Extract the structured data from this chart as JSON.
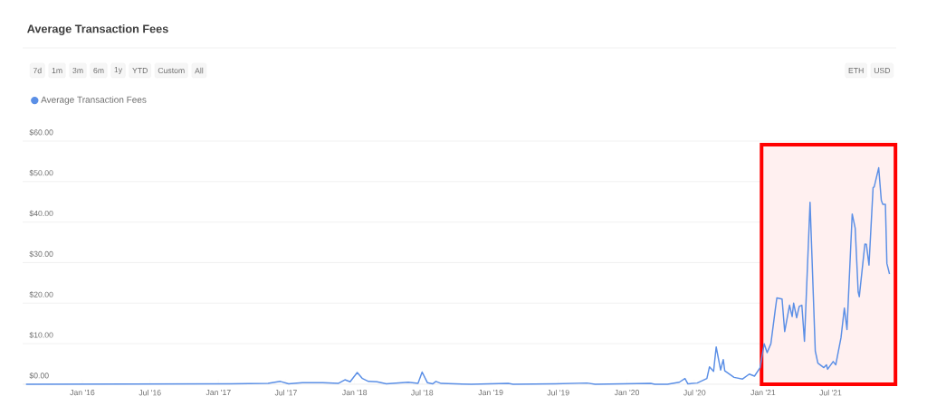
{
  "chart_data": {
    "type": "line",
    "title": "Average Transaction Fees",
    "annotations": [
      "7d",
      "1m",
      "3m",
      "6m",
      "1y",
      "YTD",
      "Custom",
      "All",
      "ETH",
      "USD"
    ],
    "series": [
      {
        "name": "Average Transaction Fees",
        "color": "#5b8fe6",
        "x": [
          "2015-08-03",
          "2017-02-03",
          "2017-05-14",
          "2017-06-16",
          "2017-07-08",
          "2017-08-14",
          "2017-10-08",
          "2017-11-18",
          "2017-12-06",
          "2017-12-20",
          "2018-01-08",
          "2018-01-22",
          "2018-02-07",
          "2018-03-02",
          "2018-03-27",
          "2018-05-25",
          "2018-06-20",
          "2018-07-01",
          "2018-07-15",
          "2018-07-29",
          "2018-08-07",
          "2018-08-21",
          "2018-11-10",
          "2019-02-17",
          "2019-03-02",
          "2019-06-23",
          "2019-09-16",
          "2019-10-08",
          "2020-03-05",
          "2020-03-16",
          "2020-04-19",
          "2020-05-21",
          "2020-06-05",
          "2020-06-13",
          "2020-07-08",
          "2020-08-03",
          "2020-08-10",
          "2020-08-21",
          "2020-08-28",
          "2020-09-09",
          "2020-09-16",
          "2020-09-20",
          "2020-10-15",
          "2020-11-07",
          "2020-11-25",
          "2020-12-09",
          "2020-12-24",
          "2021-01-04",
          "2021-01-12",
          "2021-01-22",
          "2021-02-03",
          "2021-02-07",
          "2021-02-21",
          "2021-02-28",
          "2021-03-13",
          "2021-03-20",
          "2021-03-24",
          "2021-04-01",
          "2021-04-08",
          "2021-04-15",
          "2021-04-22",
          "2021-05-07",
          "2021-05-21",
          "2021-05-28",
          "2021-06-13",
          "2021-06-20",
          "2021-06-23",
          "2021-07-08",
          "2021-07-15",
          "2021-07-29",
          "2021-08-07",
          "2021-08-14",
          "2021-08-28",
          "2021-09-05",
          "2021-09-13",
          "2021-09-16",
          "2021-10-01",
          "2021-10-05",
          "2021-10-12",
          "2021-10-23",
          "2021-10-26",
          "2021-11-07",
          "2021-11-14",
          "2021-11-18",
          "2021-11-25",
          "2021-11-29",
          "2021-12-06"
        ],
        "values": [
          0,
          0.1,
          0.2,
          0.7,
          0.1,
          0.4,
          0.4,
          0.2,
          1.1,
          0.6,
          2.9,
          1.4,
          0.7,
          0.6,
          0.1,
          0.5,
          0.2,
          3.0,
          0.4,
          0.1,
          0.7,
          0.2,
          0,
          0.2,
          0,
          0.1,
          0.3,
          0,
          0.2,
          0,
          0,
          0.5,
          1.4,
          0.1,
          0.3,
          1.4,
          4.3,
          3.2,
          9.2,
          3.5,
          6.1,
          3.3,
          1.7,
          1.3,
          2.5,
          2.0,
          4.1,
          10.0,
          7.8,
          10.0,
          18.6,
          21.3,
          21.0,
          13.0,
          19.5,
          16.7,
          20.0,
          16.4,
          19.2,
          19.5,
          10.6,
          44.9,
          8.2,
          5.2,
          4.1,
          4.8,
          3.7,
          5.6,
          4.8,
          11.5,
          18.8,
          13.5,
          42.0,
          38.5,
          22.8,
          21.6,
          34.6,
          34.5,
          29.4,
          48.5,
          48.7,
          53.4,
          45.4,
          44.4,
          44.4,
          29.8,
          27.2
        ]
      }
    ],
    "xlim": [
      "2015-07-25",
      "2021-12-24"
    ],
    "xticks": [
      {
        "value": "2016-01-01",
        "label": "Jan '16"
      },
      {
        "value": "2016-07-01",
        "label": "Jul '16"
      },
      {
        "value": "2017-01-01",
        "label": "Jan '17"
      },
      {
        "value": "2017-07-01",
        "label": "Jul '17"
      },
      {
        "value": "2018-01-01",
        "label": "Jan '18"
      },
      {
        "value": "2018-07-01",
        "label": "Jul '18"
      },
      {
        "value": "2019-01-01",
        "label": "Jan '19"
      },
      {
        "value": "2019-07-01",
        "label": "Jul '19"
      },
      {
        "value": "2020-01-01",
        "label": "Jan '20"
      },
      {
        "value": "2020-07-01",
        "label": "Jul '20"
      },
      {
        "value": "2021-01-01",
        "label": "Jan '21"
      },
      {
        "value": "2021-07-01",
        "label": "Jul '21"
      }
    ],
    "ylim": [
      0,
      60
    ],
    "yticks": [
      {
        "value": 0,
        "label": "$0.00"
      },
      {
        "value": 10,
        "label": "$10.00"
      },
      {
        "value": 20,
        "label": "$20.00"
      },
      {
        "value": 30,
        "label": "$30.00"
      },
      {
        "value": 40,
        "label": "$40.00"
      },
      {
        "value": 50,
        "label": "$50.00"
      },
      {
        "value": 60,
        "label": "$60.00"
      }
    ],
    "grid": "y",
    "legend": "top left",
    "bands": [
      {
        "axis": "x",
        "from": "2020-12-28",
        "to": "2021-12-22",
        "color": "#ff0000"
      }
    ]
  }
}
